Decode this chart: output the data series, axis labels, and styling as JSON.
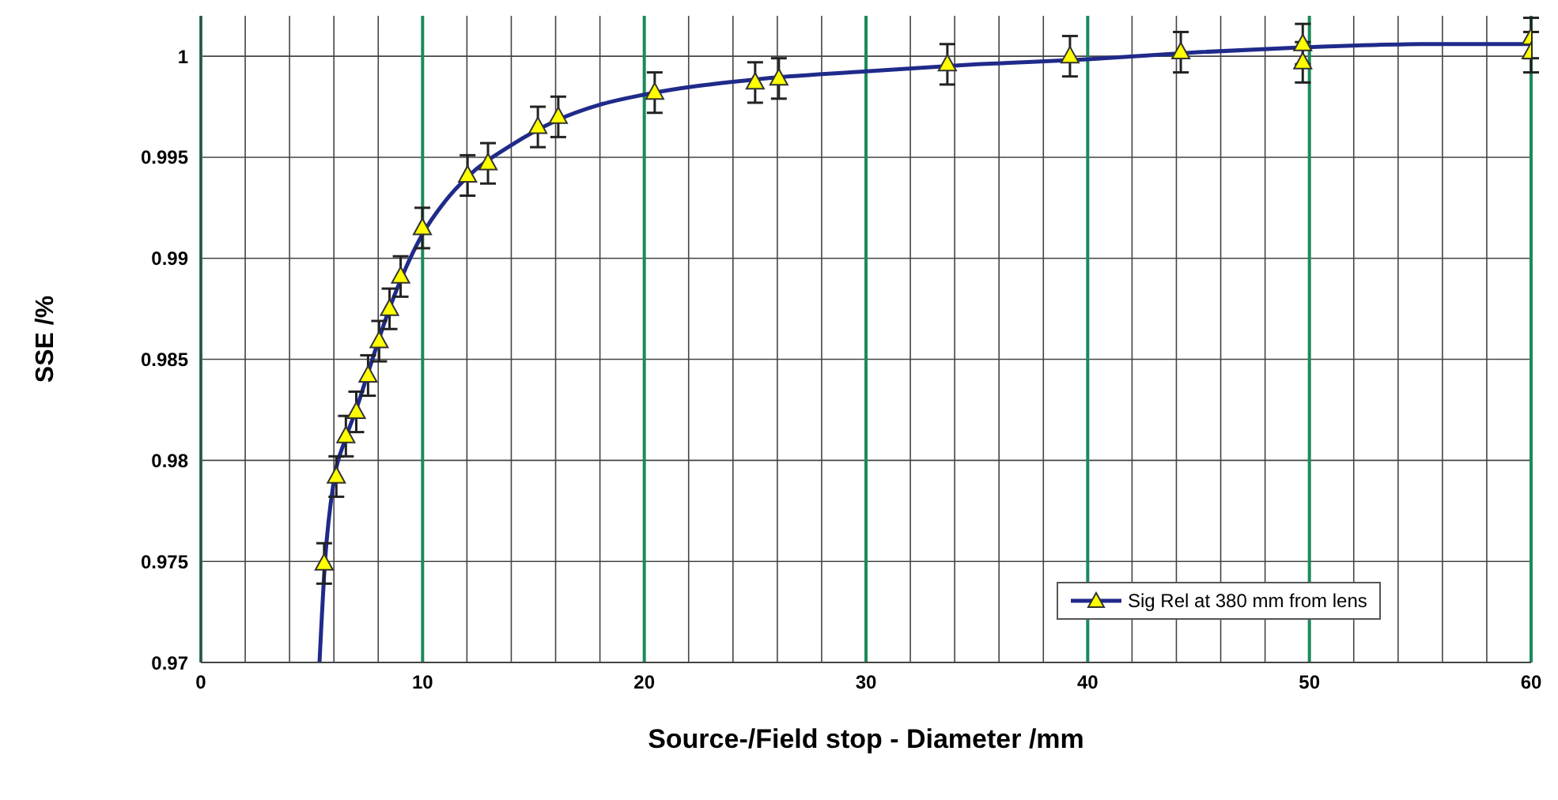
{
  "chart_data": {
    "type": "scatter",
    "xlabel": "Source-/Field stop - Diameter /mm",
    "ylabel": "SSE /%",
    "xlim": [
      0,
      60
    ],
    "xticks": [
      0,
      {
        "value": 2,
        "label": null
      },
      {
        "value": 4,
        "label": null
      },
      {
        "value": 6,
        "label": null
      },
      {
        "value": 8,
        "label": null
      },
      10,
      {
        "value": 12,
        "label": null
      },
      {
        "value": 14,
        "label": null
      },
      {
        "value": 16,
        "label": null
      },
      {
        "value": 18,
        "label": null
      },
      20,
      {
        "value": 22,
        "label": null
      },
      {
        "value": 24,
        "label": null
      },
      {
        "value": 26,
        "label": null
      },
      {
        "value": 28,
        "label": null
      },
      30,
      {
        "value": 32,
        "label": null
      },
      {
        "value": 34,
        "label": null
      },
      {
        "value": 36,
        "label": null
      },
      {
        "value": 38,
        "label": null
      },
      40,
      {
        "value": 42,
        "label": null
      },
      {
        "value": 44,
        "label": null
      },
      {
        "value": 46,
        "label": null
      },
      {
        "value": 48,
        "label": null
      },
      50,
      {
        "value": 52,
        "label": null
      },
      {
        "value": 54,
        "label": null
      },
      {
        "value": 56,
        "label": null
      },
      {
        "value": 58,
        "label": null
      },
      60
    ],
    "ylim": [
      0.97,
      1.002
    ],
    "yticks": [
      0.97,
      0.975,
      0.98,
      0.985,
      0.99,
      0.995,
      1
    ],
    "grid": true,
    "legend": "bottom right",
    "series": [
      {
        "type": "line",
        "color": "#1f2a8a",
        "x": [
          5.35,
          5.6,
          6,
          6.5,
          7,
          7.5,
          8,
          8.5,
          9,
          10,
          11,
          12,
          14,
          16,
          18,
          20,
          25,
          30,
          35,
          40,
          45,
          50,
          55,
          60
        ],
        "values": [
          0.97,
          0.975,
          0.979,
          0.981,
          0.9825,
          0.9842,
          0.9859,
          0.9875,
          0.9889,
          0.9912,
          0.9928,
          0.994,
          0.9956,
          0.9968,
          0.9976,
          0.9981,
          0.99885,
          0.99925,
          0.9996,
          0.99985,
          1.0002,
          1.00045,
          1.0006,
          1.0006
        ]
      },
      {
        "name": "Sig Rel at 380 mm from lens",
        "marker": "triangle",
        "color": "#ffff00",
        "x": [
          5.56,
          6.11,
          6.54,
          7.01,
          7.54,
          8.04,
          8.51,
          9.01,
          9.99,
          12.03,
          12.95,
          15.2,
          16.12,
          20.47,
          25,
          26.07,
          33.67,
          39.2,
          44.2,
          49.7,
          49.7,
          60,
          60
        ],
        "values": [
          0.9749,
          0.9792,
          0.9812,
          0.9824,
          0.9842,
          0.9859,
          0.9875,
          0.9891,
          0.9915,
          0.9941,
          0.9947,
          0.9965,
          0.997,
          0.9982,
          0.9987,
          0.9989,
          0.9996,
          1.0,
          1.0002,
          1.0006,
          0.9997,
          1.0009,
          1.0002
        ],
        "errors": [
          0.001,
          0.001,
          0.001,
          0.001,
          0.001,
          0.001,
          0.001,
          0.001,
          0.001,
          0.001,
          0.001,
          0.001,
          0.001,
          0.001,
          0.001,
          0.001,
          0.001,
          0.001,
          0.001,
          0.001,
          0.001,
          0.001,
          0.001
        ]
      }
    ]
  }
}
